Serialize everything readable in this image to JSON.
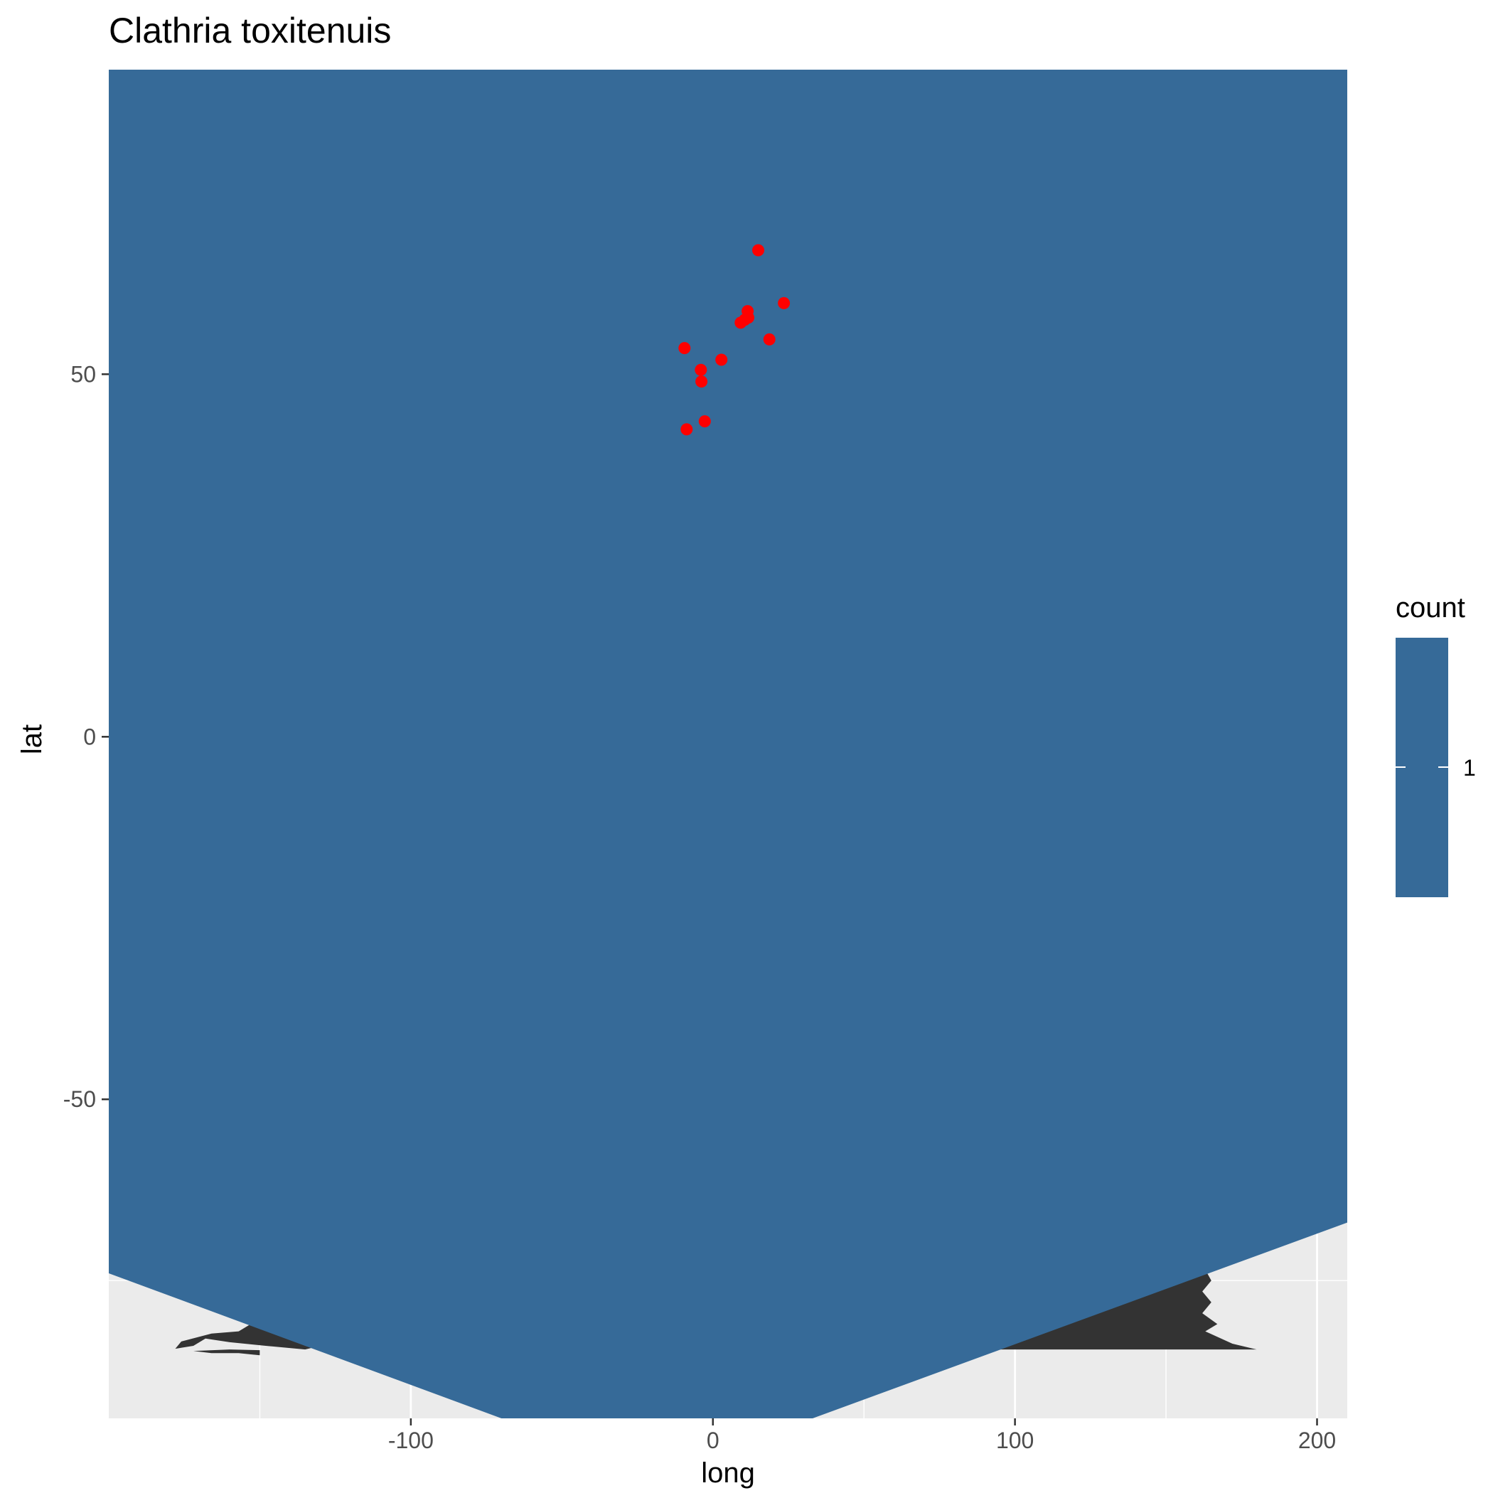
{
  "chart_data": {
    "type": "scatter",
    "title": "Clathria toxitenuis",
    "xlabel": "long",
    "ylabel": "lat",
    "xlim": [
      -200,
      210
    ],
    "ylim": [
      -94,
      92
    ],
    "x_ticks": [
      -100,
      0,
      100,
      200
    ],
    "y_ticks": [
      -50,
      0,
      50
    ],
    "x_tick_labels": [
      "-100",
      "0",
      "100",
      "200"
    ],
    "y_tick_labels": [
      "-50",
      "0",
      "50"
    ],
    "grid": true,
    "panel_background": "#ebebeb",
    "colors": {
      "ocean_fill": "#366a98",
      "land_fill": "#333333",
      "point": "#ff0000"
    },
    "ocean_polygon": [
      [
        -200,
        92
      ],
      [
        210,
        92
      ],
      [
        210,
        -67
      ],
      [
        33,
        -94
      ],
      [
        -70,
        -94
      ],
      [
        -200,
        -74
      ]
    ],
    "land_polygons": [
      [
        [
          -153,
          -81
        ],
        [
          -142,
          -80.5
        ],
        [
          -130,
          -80.8
        ],
        [
          -125,
          -83.5
        ],
        [
          -135,
          -84.5
        ],
        [
          -148,
          -84
        ],
        [
          -160,
          -83.5
        ],
        [
          -168,
          -83
        ],
        [
          -172,
          -84
        ],
        [
          -178,
          -84.4
        ],
        [
          -176,
          -83.4
        ],
        [
          -166,
          -82.3
        ],
        [
          -157,
          -82
        ]
      ],
      [
        [
          -150,
          -85.3
        ],
        [
          -157,
          -85
        ],
        [
          -166,
          -85
        ],
        [
          -172,
          -84.7
        ],
        [
          -160,
          -84.5
        ],
        [
          -150,
          -84.6
        ]
      ],
      [
        [
          95,
          -84.5
        ],
        [
          140,
          -77.5
        ],
        [
          160,
          -74.5
        ],
        [
          163,
          -73.5
        ],
        [
          165,
          -75
        ],
        [
          162,
          -76.5
        ],
        [
          165,
          -78
        ],
        [
          162,
          -79.5
        ],
        [
          167,
          -81
        ],
        [
          163,
          -82
        ],
        [
          172,
          -83.7
        ],
        [
          180,
          -84.5
        ]
      ]
    ],
    "series": [
      {
        "points": [
          [
            15,
            67.1
          ],
          [
            23.5,
            59.8
          ],
          [
            11.5,
            58.7
          ],
          [
            11.7,
            57.8
          ],
          [
            10.5,
            57.5
          ],
          [
            9.2,
            57.1
          ],
          [
            18.7,
            54.8
          ],
          [
            -9.4,
            53.6
          ],
          [
            2.8,
            52
          ],
          [
            -4,
            50.6
          ],
          [
            -3.8,
            49
          ],
          [
            -2.7,
            43.5
          ],
          [
            -8.7,
            42.4
          ]
        ]
      }
    ],
    "legend": {
      "title": "count",
      "labels": [
        "1"
      ],
      "position": "right"
    }
  }
}
